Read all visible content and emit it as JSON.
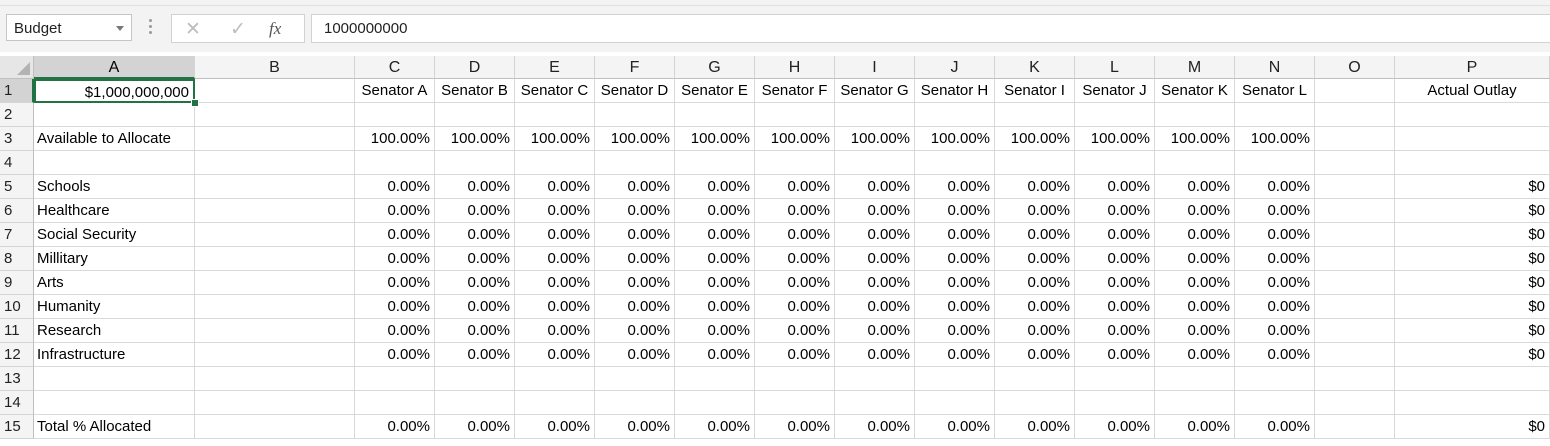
{
  "name_box": {
    "value": "Budget"
  },
  "formula_bar": {
    "cancel_icon": "✕",
    "enter_icon": "✓",
    "fx_label": "fx",
    "value": "1000000000"
  },
  "columns": [
    "A",
    "B",
    "C",
    "D",
    "E",
    "F",
    "G",
    "H",
    "I",
    "J",
    "K",
    "L",
    "M",
    "N",
    "O",
    "P"
  ],
  "row_numbers": [
    "1",
    "2",
    "3",
    "4",
    "5",
    "6",
    "7",
    "8",
    "9",
    "10",
    "11",
    "12",
    "13",
    "14",
    "15"
  ],
  "active_cell": "A1",
  "rows": [
    [
      "$1,000,000,000",
      "",
      "Senator A",
      "Senator B",
      "Senator C",
      "Senator D",
      "Senator E",
      "Senator F",
      "Senator G",
      "Senator H",
      "Senator I",
      "Senator J",
      "Senator K",
      "Senator L",
      "",
      "Actual Outlay"
    ],
    [
      "",
      "",
      "",
      "",
      "",
      "",
      "",
      "",
      "",
      "",
      "",
      "",
      "",
      "",
      "",
      ""
    ],
    [
      "Available to Allocate",
      "",
      "100.00%",
      "100.00%",
      "100.00%",
      "100.00%",
      "100.00%",
      "100.00%",
      "100.00%",
      "100.00%",
      "100.00%",
      "100.00%",
      "100.00%",
      "100.00%",
      "",
      ""
    ],
    [
      "",
      "",
      "",
      "",
      "",
      "",
      "",
      "",
      "",
      "",
      "",
      "",
      "",
      "",
      "",
      ""
    ],
    [
      "Schools",
      "",
      "0.00%",
      "0.00%",
      "0.00%",
      "0.00%",
      "0.00%",
      "0.00%",
      "0.00%",
      "0.00%",
      "0.00%",
      "0.00%",
      "0.00%",
      "0.00%",
      "",
      "$0"
    ],
    [
      "Healthcare",
      "",
      "0.00%",
      "0.00%",
      "0.00%",
      "0.00%",
      "0.00%",
      "0.00%",
      "0.00%",
      "0.00%",
      "0.00%",
      "0.00%",
      "0.00%",
      "0.00%",
      "",
      "$0"
    ],
    [
      "Social Security",
      "",
      "0.00%",
      "0.00%",
      "0.00%",
      "0.00%",
      "0.00%",
      "0.00%",
      "0.00%",
      "0.00%",
      "0.00%",
      "0.00%",
      "0.00%",
      "0.00%",
      "",
      "$0"
    ],
    [
      "Millitary",
      "",
      "0.00%",
      "0.00%",
      "0.00%",
      "0.00%",
      "0.00%",
      "0.00%",
      "0.00%",
      "0.00%",
      "0.00%",
      "0.00%",
      "0.00%",
      "0.00%",
      "",
      "$0"
    ],
    [
      "Arts",
      "",
      "0.00%",
      "0.00%",
      "0.00%",
      "0.00%",
      "0.00%",
      "0.00%",
      "0.00%",
      "0.00%",
      "0.00%",
      "0.00%",
      "0.00%",
      "0.00%",
      "",
      "$0"
    ],
    [
      "Humanity",
      "",
      "0.00%",
      "0.00%",
      "0.00%",
      "0.00%",
      "0.00%",
      "0.00%",
      "0.00%",
      "0.00%",
      "0.00%",
      "0.00%",
      "0.00%",
      "0.00%",
      "",
      "$0"
    ],
    [
      "Research",
      "",
      "0.00%",
      "0.00%",
      "0.00%",
      "0.00%",
      "0.00%",
      "0.00%",
      "0.00%",
      "0.00%",
      "0.00%",
      "0.00%",
      "0.00%",
      "0.00%",
      "",
      "$0"
    ],
    [
      "Infrastructure",
      "",
      "0.00%",
      "0.00%",
      "0.00%",
      "0.00%",
      "0.00%",
      "0.00%",
      "0.00%",
      "0.00%",
      "0.00%",
      "0.00%",
      "0.00%",
      "0.00%",
      "",
      "$0"
    ],
    [
      "",
      "",
      "",
      "",
      "",
      "",
      "",
      "",
      "",
      "",
      "",
      "",
      "",
      "",
      "",
      ""
    ],
    [
      "",
      "",
      "",
      "",
      "",
      "",
      "",
      "",
      "",
      "",
      "",
      "",
      "",
      "",
      "",
      ""
    ],
    [
      "Total % Allocated",
      "",
      "0.00%",
      "0.00%",
      "0.00%",
      "0.00%",
      "0.00%",
      "0.00%",
      "0.00%",
      "0.00%",
      "0.00%",
      "0.00%",
      "0.00%",
      "0.00%",
      "",
      "$0"
    ]
  ]
}
